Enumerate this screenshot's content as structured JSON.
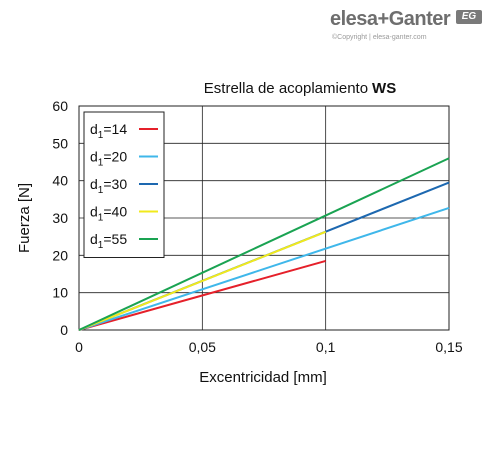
{
  "brand": {
    "name": "elesa+Ganter",
    "badge": "EG",
    "copyright": "©Copyright | elesa-ganter.com"
  },
  "chart_data": {
    "type": "line",
    "title": "Estrella de acoplamiento",
    "title_bold": "WS",
    "xlabel": "Excentricidad [mm]",
    "ylabel": "Fuerza [N]",
    "xlim": [
      0,
      0.15
    ],
    "ylim": [
      0,
      60
    ],
    "x_ticks": [
      {
        "v": 0,
        "label": "0"
      },
      {
        "v": 0.05,
        "label": "0,05"
      },
      {
        "v": 0.1,
        "label": "0,1"
      },
      {
        "v": 0.15,
        "label": "0,15"
      }
    ],
    "y_ticks": [
      {
        "v": 0,
        "label": "0"
      },
      {
        "v": 10,
        "label": "10"
      },
      {
        "v": 20,
        "label": "20"
      },
      {
        "v": 30,
        "label": "30"
      },
      {
        "v": 40,
        "label": "40"
      },
      {
        "v": 50,
        "label": "50"
      },
      {
        "v": 60,
        "label": "60"
      }
    ],
    "grid": true,
    "legend_position": "top-left",
    "series": [
      {
        "name": "d1=14",
        "sub_base": "d",
        "sub": "1",
        "rest": "=14",
        "color": "#e5202a",
        "points": [
          [
            0,
            0
          ],
          [
            0.1,
            18.5
          ]
        ]
      },
      {
        "name": "d1=20",
        "sub_base": "d",
        "sub": "1",
        "rest": "=20",
        "color": "#3fb7ea",
        "points": [
          [
            0,
            0
          ],
          [
            0.15,
            32.7
          ]
        ]
      },
      {
        "name": "d1=30",
        "sub_base": "d",
        "sub": "1",
        "rest": "=30",
        "color": "#1d68b0",
        "points": [
          [
            0,
            0
          ],
          [
            0.15,
            39.5
          ]
        ]
      },
      {
        "name": "d1=40",
        "sub_base": "d",
        "sub": "1",
        "rest": "=40",
        "color": "#f1ea1c",
        "points": [
          [
            0,
            0
          ],
          [
            0.1,
            26.3
          ]
        ]
      },
      {
        "name": "d1=55",
        "sub_base": "d",
        "sub": "1",
        "rest": "=55",
        "color": "#1aa352",
        "points": [
          [
            0,
            0
          ],
          [
            0.15,
            46
          ]
        ]
      }
    ]
  }
}
